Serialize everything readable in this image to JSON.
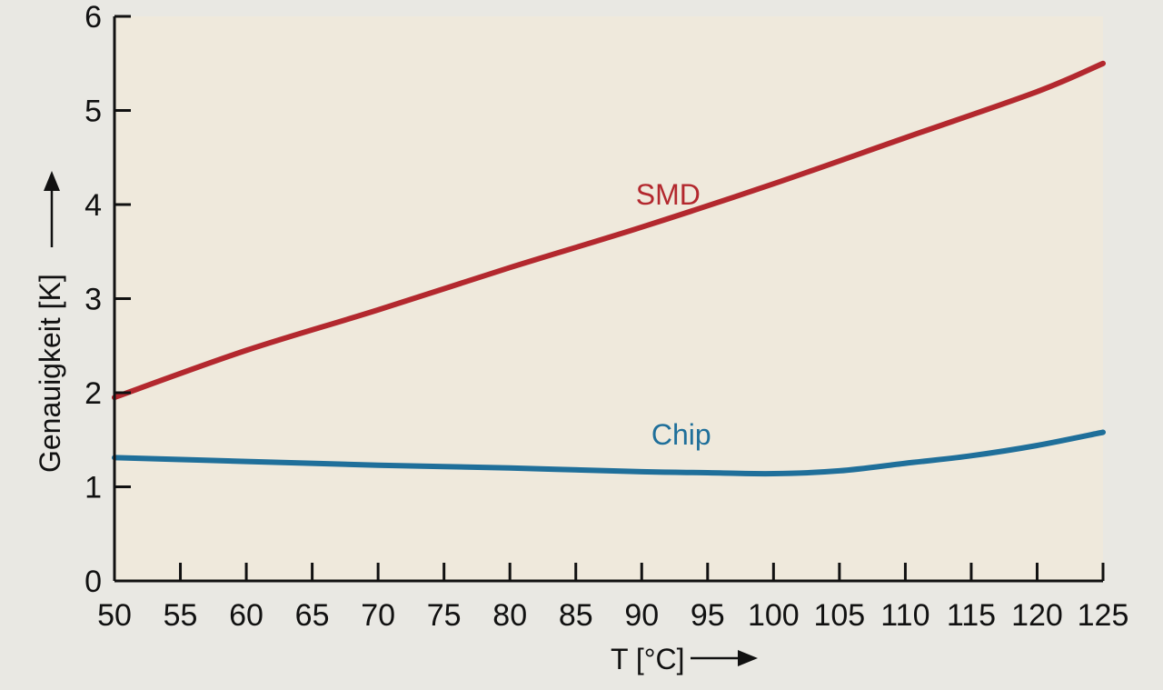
{
  "chart_data": {
    "type": "line",
    "title": "",
    "xlabel": "T [°C]",
    "ylabel": "Genauigkeit [K]",
    "xlim": [
      50,
      125
    ],
    "ylim": [
      0,
      6
    ],
    "x_ticks": [
      50,
      55,
      60,
      65,
      70,
      75,
      80,
      85,
      90,
      95,
      100,
      105,
      110,
      115,
      120,
      125
    ],
    "y_ticks": [
      0,
      1,
      2,
      3,
      4,
      5,
      6
    ],
    "grid": false,
    "legend": "none",
    "colors": {
      "plot_background": "#efe9dc",
      "axis": "#111111"
    },
    "series": [
      {
        "name": "SMD",
        "color": "#b3282e",
        "x": [
          50,
          60,
          70,
          80,
          90,
          100,
          110,
          120,
          125
        ],
        "y": [
          1.95,
          2.45,
          2.88,
          3.33,
          3.76,
          4.22,
          4.71,
          5.2,
          5.5
        ]
      },
      {
        "name": "Chip",
        "color": "#1f6f9a",
        "x": [
          50,
          60,
          70,
          80,
          90,
          95,
          100,
          105,
          110,
          115,
          120,
          125
        ],
        "y": [
          1.31,
          1.27,
          1.23,
          1.2,
          1.16,
          1.15,
          1.14,
          1.17,
          1.25,
          1.33,
          1.44,
          1.58
        ]
      }
    ],
    "annotations": [
      {
        "text": "SMD",
        "series": "SMD",
        "x": 92,
        "y": 4.0
      },
      {
        "text": "Chip",
        "series": "Chip",
        "x": 93,
        "y": 1.45
      }
    ]
  }
}
